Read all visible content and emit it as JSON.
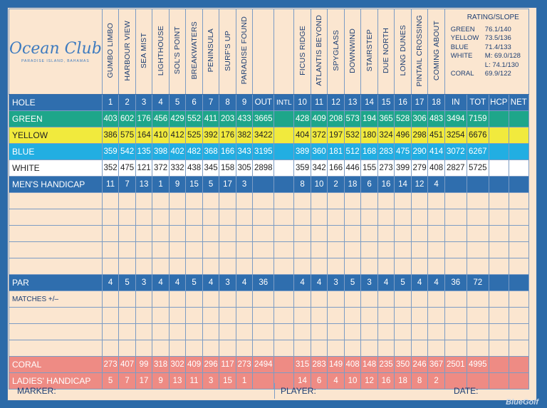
{
  "logo": {
    "name": "Ocean Club",
    "sub": "PARADISE ISLAND, BAHAMAS"
  },
  "front_holes": [
    "GUMBO LIMBO",
    "HARBOUR VIEW",
    "SEA MIST",
    "LIGHTHOUSE",
    "SOL'S POINT",
    "BREAKWATERS",
    "PENINSULA",
    "SURF'S UP",
    "PARADISE FOUND"
  ],
  "back_holes": [
    "FICUS RIDGE",
    "ATLANTIS BEYOND",
    "SPYGLASS",
    "DOWNWIND",
    "STAIRSTEP",
    "DUE NORTH",
    "LONG DUNES",
    "PINTAIL CROSSING",
    "COMING ABOUT"
  ],
  "rating": {
    "title": "RATING/SLOPE",
    "rows": [
      {
        "name": "GREEN",
        "value": "76.1/140"
      },
      {
        "name": "YELLOW",
        "value": "73.5/136"
      },
      {
        "name": "BLUE",
        "value": "71.4/133"
      },
      {
        "name": "WHITE",
        "value": "M: 69.0/128"
      },
      {
        "name": "",
        "value": "L: 74.1/130"
      },
      {
        "name": "CORAL",
        "value": "69.9/122"
      }
    ]
  },
  "header_row": {
    "label": "HOLE",
    "front": [
      "1",
      "2",
      "3",
      "4",
      "5",
      "6",
      "7",
      "8",
      "9"
    ],
    "out": "OUT",
    "intl": "INTL",
    "back": [
      "10",
      "11",
      "12",
      "13",
      "14",
      "15",
      "16",
      "17",
      "18"
    ],
    "in": "IN",
    "tot": "TOT",
    "hcp": "HCP",
    "net": "NET"
  },
  "green": {
    "label": "GREEN",
    "front": [
      "403",
      "602",
      "176",
      "456",
      "429",
      "552",
      "411",
      "203",
      "433"
    ],
    "out": "3665",
    "back": [
      "428",
      "409",
      "208",
      "573",
      "194",
      "365",
      "528",
      "306",
      "483"
    ],
    "in": "3494",
    "tot": "7159"
  },
  "yellow": {
    "label": "YELLOW",
    "front": [
      "386",
      "575",
      "164",
      "410",
      "412",
      "525",
      "392",
      "176",
      "382"
    ],
    "out": "3422",
    "back": [
      "404",
      "372",
      "197",
      "532",
      "180",
      "324",
      "496",
      "298",
      "451"
    ],
    "in": "3254",
    "tot": "6676"
  },
  "blue": {
    "label": "BLUE",
    "front": [
      "359",
      "542",
      "135",
      "398",
      "402",
      "482",
      "368",
      "166",
      "343"
    ],
    "out": "3195",
    "back": [
      "389",
      "360",
      "181",
      "512",
      "168",
      "283",
      "475",
      "290",
      "414"
    ],
    "in": "3072",
    "tot": "6267"
  },
  "white": {
    "label": "WHITE",
    "front": [
      "352",
      "475",
      "121",
      "372",
      "332",
      "438",
      "345",
      "158",
      "305"
    ],
    "out": "2898",
    "back": [
      "359",
      "342",
      "166",
      "446",
      "155",
      "273",
      "399",
      "279",
      "408"
    ],
    "in": "2827",
    "tot": "5725"
  },
  "mens_hcp": {
    "label": "MEN'S HANDICAP",
    "front": [
      "11",
      "7",
      "13",
      "1",
      "9",
      "15",
      "5",
      "17",
      "3"
    ],
    "back": [
      "8",
      "10",
      "2",
      "18",
      "6",
      "16",
      "14",
      "12",
      "4"
    ]
  },
  "par": {
    "label": "PAR",
    "front": [
      "4",
      "5",
      "3",
      "4",
      "4",
      "5",
      "4",
      "3",
      "4"
    ],
    "out": "36",
    "back": [
      "4",
      "4",
      "3",
      "5",
      "3",
      "4",
      "5",
      "4",
      "4"
    ],
    "in": "36",
    "tot": "72"
  },
  "matches": {
    "label": "MATCHES +/–"
  },
  "coral": {
    "label": "CORAL",
    "front": [
      "273",
      "407",
      "99",
      "318",
      "302",
      "409",
      "296",
      "117",
      "273"
    ],
    "out": "2494",
    "back": [
      "315",
      "283",
      "149",
      "408",
      "148",
      "235",
      "350",
      "246",
      "367"
    ],
    "in": "2501",
    "tot": "4995"
  },
  "ladies_hcp": {
    "label": "LADIES' HANDICAP",
    "front": [
      "5",
      "7",
      "17",
      "9",
      "13",
      "11",
      "3",
      "15",
      "1"
    ],
    "back": [
      "14",
      "6",
      "4",
      "10",
      "12",
      "16",
      "18",
      "8",
      "2"
    ]
  },
  "footer": {
    "marker": "MARKER:",
    "player": "PLAYER:",
    "date": "DATE:"
  },
  "watermark": "BlueGolf",
  "colors": {
    "blue": "#2f6eae",
    "green": "#1ea68a",
    "yellow": "#f1ea3d",
    "light_blue": "#22aee2",
    "coral": "#ee8b84",
    "card": "#fbe6d0"
  }
}
